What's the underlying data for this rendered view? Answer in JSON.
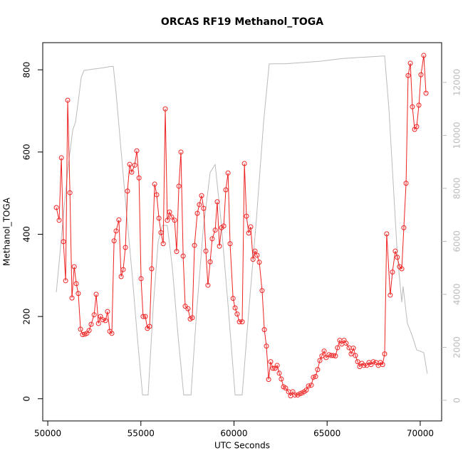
{
  "chart_data": {
    "type": "line",
    "title": "ORCAS RF19 Methanol_TOGA",
    "xlabel": "UTC Seconds",
    "ylabel": "Methanol_TOGA",
    "xlim": [
      49730,
      71150
    ],
    "xticks": [
      50000,
      55000,
      60000,
      65000,
      70000
    ],
    "ylim": [
      -54,
      866
    ],
    "yticks": [
      0,
      200,
      400,
      600,
      800
    ],
    "y2lim": [
      -780,
      13500
    ],
    "y2ticks": [
      0,
      2000,
      4000,
      6000,
      8000,
      10000,
      12000
    ],
    "y2tick_color": "#bbbbbb",
    "series": [
      {
        "color": "#ee2222",
        "markers": true,
        "axis": "y",
        "x": [
          50460,
          50610,
          50730,
          50840,
          50960,
          51070,
          51190,
          51300,
          51420,
          51530,
          51640,
          51760,
          51870,
          51990,
          52100,
          52220,
          52330,
          52490,
          52600,
          52720,
          52830,
          52950,
          53100,
          53210,
          53330,
          53440,
          53560,
          53670,
          53820,
          53940,
          54050,
          54170,
          54280,
          54400,
          54510,
          54670,
          54780,
          54900,
          55010,
          55120,
          55240,
          55350,
          55470,
          55580,
          55740,
          55850,
          55970,
          56080,
          56200,
          56310,
          56420,
          56540,
          56650,
          56810,
          56920,
          57040,
          57150,
          57270,
          57380,
          57530,
          57650,
          57760,
          57880,
          58030,
          58140,
          58260,
          58370,
          58490,
          58600,
          58720,
          58830,
          58990,
          59100,
          59220,
          59330,
          59450,
          59560,
          59680,
          59790,
          59950,
          60060,
          60170,
          60290,
          60440,
          60560,
          60670,
          60790,
          60900,
          61020,
          61130,
          61240,
          61360,
          61510,
          61630,
          61740,
          61860,
          61970,
          62090,
          62200,
          62320,
          62430,
          62540,
          62660,
          62770,
          62930,
          63040,
          63160,
          63270,
          63420,
          63540,
          63650,
          63770,
          63880,
          64000,
          64150,
          64260,
          64380,
          64490,
          64610,
          64720,
          64840,
          64950,
          65100,
          65220,
          65330,
          65450,
          65560,
          65680,
          65790,
          65910,
          66020,
          66180,
          66290,
          66410,
          66520,
          66640,
          66750,
          66870,
          66980,
          67130,
          67250,
          67360,
          67480,
          67630,
          67750,
          67860,
          67980,
          68090,
          68200,
          68390,
          68510,
          68660,
          68770,
          68890,
          69010,
          69120,
          69240,
          69350,
          69470,
          69580,
          69700,
          69810,
          69930,
          70040,
          70190,
          70310
        ],
        "values": [
          465,
          434,
          586,
          382,
          287,
          726,
          501,
          245,
          321,
          280,
          256,
          169,
          156,
          157,
          159,
          166,
          181,
          204,
          254,
          183,
          200,
          192,
          190,
          212,
          164,
          159,
          384,
          408,
          435,
          297,
          314,
          368,
          505,
          570,
          551,
          568,
          603,
          537,
          292,
          200,
          200,
          171,
          176,
          316,
          522,
          496,
          439,
          404,
          377,
          705,
          434,
          454,
          442,
          434,
          358,
          517,
          600,
          347,
          225,
          219,
          194,
          197,
          373,
          451,
          472,
          494,
          463,
          359,
          276,
          333,
          389,
          410,
          479,
          371,
          416,
          420,
          508,
          549,
          377,
          244,
          221,
          206,
          187,
          187,
          572,
          444,
          403,
          418,
          339,
          359,
          349,
          332,
          263,
          168,
          128,
          47,
          90,
          74,
          74,
          81,
          62,
          48,
          29,
          26,
          17,
          7,
          17,
          9,
          9,
          12,
          14,
          17,
          21,
          31,
          33,
          52,
          54,
          71,
          93,
          104,
          116,
          100,
          107,
          105,
          105,
          104,
          124,
          142,
          133,
          142,
          135,
          124,
          109,
          123,
          105,
          90,
          78,
          86,
          81,
          81,
          88,
          83,
          90,
          88,
          81,
          88,
          83,
          109,
          401,
          252,
          308,
          359,
          344,
          321,
          316,
          416,
          524,
          786,
          816,
          710,
          655,
          662,
          714,
          788,
          835,
          743
        ]
      },
      {
        "color": "#bbbbbb",
        "markers": false,
        "axis": "y2",
        "x": [
          50460,
          50650,
          50880,
          51110,
          51340,
          51490,
          51640,
          51800,
          51950,
          52410,
          52980,
          53370,
          53520,
          53670,
          53940,
          54240,
          54550,
          54820,
          55090,
          55390,
          55660,
          55930,
          56160,
          56420,
          56690,
          57000,
          57300,
          57690,
          57990,
          58340,
          58720,
          58990,
          59300,
          59680,
          60060,
          60440,
          60820,
          61200,
          61590,
          61890,
          62730,
          64640,
          65790,
          66940,
          68090,
          68320,
          68550,
          68770,
          69010,
          69080,
          69310,
          69540,
          69810,
          70190,
          70380
        ],
        "values": [
          4080,
          5500,
          7300,
          8900,
          10200,
          10500,
          11300,
          12200,
          12450,
          12500,
          12550,
          12600,
          12600,
          11600,
          9400,
          7000,
          4600,
          2300,
          200,
          200,
          3500,
          6000,
          6600,
          6600,
          5000,
          2400,
          200,
          200,
          3300,
          6400,
          8600,
          8900,
          6800,
          3600,
          200,
          200,
          3600,
          6800,
          10500,
          12700,
          12700,
          12800,
          12900,
          12950,
          13000,
          11000,
          8200,
          5500,
          3700,
          4300,
          2900,
          2500,
          1900,
          1800,
          1000
        ]
      }
    ]
  }
}
